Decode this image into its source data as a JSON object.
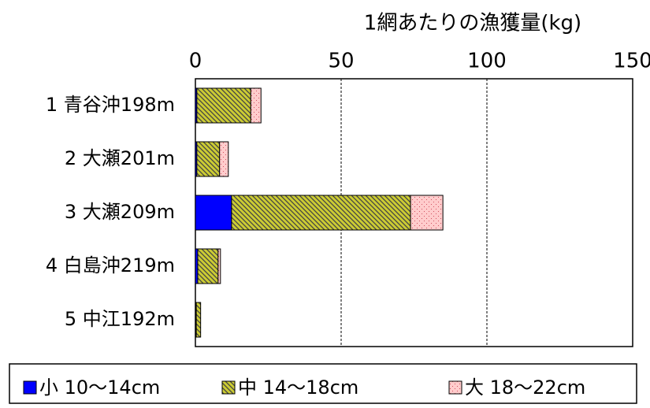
{
  "chart_data": {
    "type": "stacked-barh",
    "title": "1網あたりの漁獲量(kg)",
    "categories": [
      "1 青谷沖198m",
      "2 大瀬201m",
      "3 大瀬209m",
      "4 白島沖219m",
      "5 中江192m"
    ],
    "series": [
      {
        "name": "小 10〜14cm",
        "color": "#0000ff",
        "values": [
          0.5,
          0.5,
          12.4,
          0.8,
          0.3
        ]
      },
      {
        "name": "中 14〜18cm",
        "color": "#cccc33",
        "values": [
          18.5,
          7.8,
          61.4,
          7,
          1.5
        ]
      },
      {
        "name": "大 18〜22cm",
        "color": "#ffcccc",
        "values": [
          3.5,
          3,
          11.1,
          0.8,
          0
        ]
      }
    ],
    "xlim": [
      0,
      150
    ],
    "xticks": [
      0,
      50,
      100,
      150
    ],
    "grid": true
  }
}
